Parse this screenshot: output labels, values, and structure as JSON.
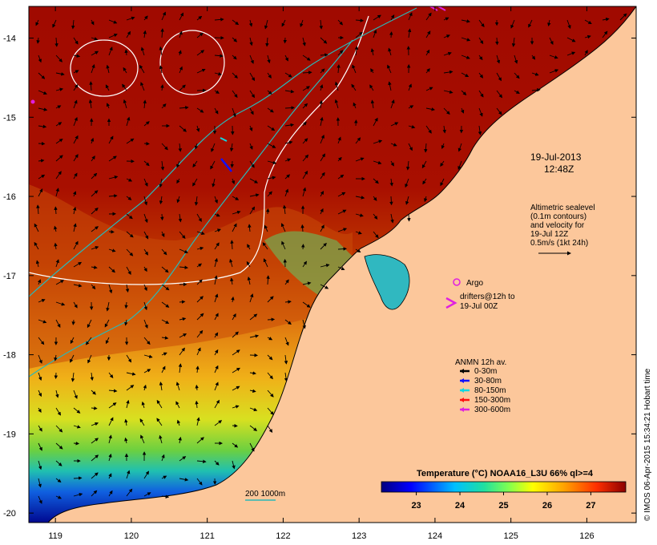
{
  "map": {
    "lon_min": 118.65,
    "lon_max": 126.65,
    "lat_min": -20.12,
    "lat_max": -13.6,
    "lon_ticks": [
      "119",
      "120",
      "121",
      "122",
      "123",
      "124",
      "125",
      "126"
    ],
    "lat_ticks": [
      "-14",
      "-15",
      "-16",
      "-17",
      "-18",
      "-19",
      "-20"
    ],
    "colors": {
      "land": "#fcc79b",
      "deep_sst": "#a00a00",
      "contour": "#ffffff",
      "bathymetry": "#29b8b8",
      "coastline": "#000000"
    }
  },
  "date_stamp": {
    "date": "19-Jul-2013",
    "time": "12:48Z"
  },
  "altimetry_note": {
    "lines": [
      "Altimetric sealevel",
      "(0.1m contours)",
      "and velocity for",
      "19-Jul 12Z",
      "0.5m/s (1kt 24h)"
    ]
  },
  "argo_legend": {
    "label": "Argo",
    "color": "#e020e0"
  },
  "drifters_legend": {
    "line1": "drifters@12h to",
    "line2": "19-Jul 00Z",
    "color": "#e020e0"
  },
  "anmn_legend": {
    "title": "ANMN 12h av.",
    "items": [
      {
        "label": "0-30m",
        "color": "#000000"
      },
      {
        "label": "30-80m",
        "color": "#1010ff"
      },
      {
        "label": "80-150m",
        "color": "#10d8e0"
      },
      {
        "label": "150-300m",
        "color": "#ff1010"
      },
      {
        "label": "300-600m",
        "color": "#e020e0"
      }
    ]
  },
  "bathymetry_legend": {
    "label": "200  1000m"
  },
  "colorbar": {
    "title": "Temperature (°C) NOAA16_L3U 66% ql>=4",
    "tick_labels": [
      "23",
      "24",
      "25",
      "26",
      "27"
    ],
    "min": 22.2,
    "max": 27.8
  },
  "credit": "© IMOS 06-Apr-2015 15:34:21 Hobart time"
}
